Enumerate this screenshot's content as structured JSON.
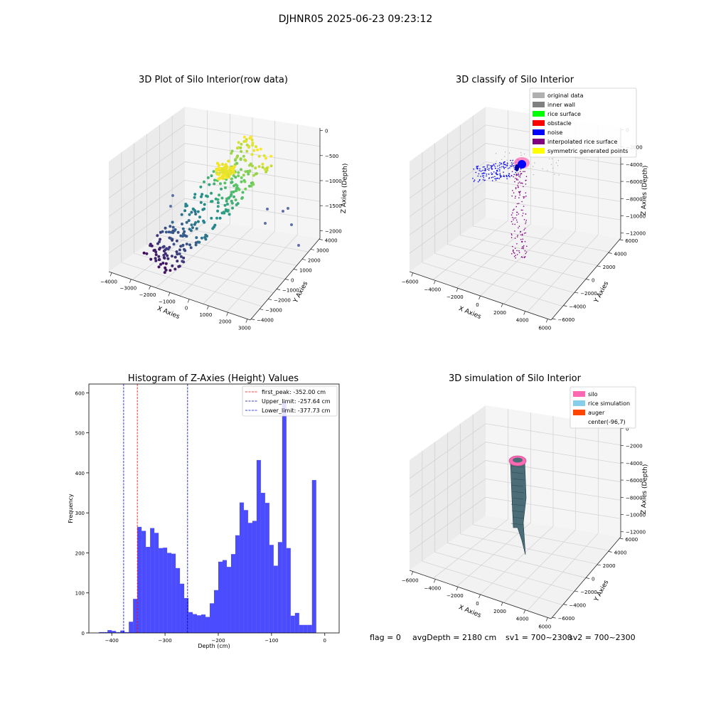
{
  "suptitle": "DJHNR05 2025-06-23 09:23:12",
  "footer": {
    "flag": "flag = 0",
    "avg_depth": "avgDepth = 2180 cm",
    "sv1": "sv1 = 700~2300",
    "sv2": "sv2 = 700~2300"
  },
  "chart_data": [
    {
      "type": "scatter",
      "title": "3D Plot of Silo Interior(row data)",
      "xlabel": "X Axies",
      "ylabel": "Y Axies",
      "zlabel": "Z Axies (Depth)",
      "x_ticks": [
        "−4000",
        "−3000",
        "−2000",
        "−1000",
        "0",
        "1000",
        "2000",
        "3000"
      ],
      "y_ticks": [
        "−4000",
        "−3000",
        "−2000",
        "−1000",
        "0",
        "1000",
        "2000",
        "3000",
        "4000"
      ],
      "z_ticks": [
        "0",
        "−500",
        "−1000",
        "−1500",
        "−2000"
      ],
      "colormap": [
        "#440154",
        "#3b528b",
        "#21918c",
        "#5ec962",
        "#fde725"
      ]
    },
    {
      "type": "scatter",
      "title": "3D classify of Silo Interior",
      "xlabel": "X Axies",
      "ylabel": "Y Axies",
      "zlabel": "Z Axies (Depth)",
      "x_ticks": [
        "−6000",
        "−4000",
        "−2000",
        "0",
        "2000",
        "4000",
        "6000"
      ],
      "y_ticks": [
        "−6000",
        "−4000",
        "−2000",
        "0",
        "2000",
        "4000",
        "6000"
      ],
      "z_ticks": [
        "0",
        "−2000",
        "−4000",
        "−6000",
        "−8000",
        "−10000",
        "−12000"
      ],
      "legend": [
        {
          "label": "original data",
          "color": "#b0b0b0"
        },
        {
          "label": "inner wall",
          "color": "#808080"
        },
        {
          "label": "rice surface",
          "color": "#00ff00"
        },
        {
          "label": "obstacle",
          "color": "#ff0000"
        },
        {
          "label": "noise",
          "color": "#0000ff"
        },
        {
          "label": "interpolated rice surface",
          "color": "#800080"
        },
        {
          "label": "symmetric generated points",
          "color": "#ffff00"
        }
      ]
    },
    {
      "type": "bar",
      "title": "Histogram of Z-Axies (Height) Values",
      "xlabel": "Depth (cm)",
      "ylabel": "Frequency",
      "xlim": [
        -443,
        27
      ],
      "ylim": [
        0,
        622
      ],
      "bin_width": 8,
      "bin_starts": [
        -424,
        -416,
        -408,
        -400,
        -392,
        -384,
        -376,
        -368,
        -360,
        -352,
        -344,
        -336,
        -328,
        -320,
        -312,
        -304,
        -296,
        -288,
        -280,
        -272,
        -264,
        -256,
        -248,
        -240,
        -232,
        -224,
        -216,
        -208,
        -200,
        -192,
        -184,
        -176,
        -168,
        -160,
        -152,
        -144,
        -136,
        -128,
        -120,
        -112,
        -104,
        -96,
        -88,
        -80,
        -72,
        -64,
        -56,
        -48,
        -40,
        -32,
        -24,
        -16,
        -8
      ],
      "values": [
        2,
        2,
        7,
        5,
        2,
        6,
        2,
        28,
        85,
        265,
        255,
        215,
        262,
        250,
        212,
        213,
        200,
        198,
        162,
        123,
        87,
        52,
        47,
        44,
        46,
        40,
        74,
        107,
        178,
        182,
        165,
        197,
        244,
        326,
        307,
        275,
        280,
        432,
        350,
        325,
        220,
        168,
        227,
        577,
        212,
        43,
        50,
        20,
        20,
        20,
        382,
        0,
        0
      ],
      "bar_color": "#0000ff",
      "x_ticks": [
        -400,
        -300,
        -200,
        -100,
        0
      ],
      "y_ticks": [
        0,
        100,
        200,
        300,
        400,
        500,
        600
      ],
      "vlines": [
        {
          "label": "first_peak: -352.00 cm",
          "x": -352.0,
          "color": "#ff0000"
        },
        {
          "label": "Upper_limit: -257.64 cm",
          "x": -257.64,
          "color": "#0000a0"
        },
        {
          "label": "Lower_limit: -377.73 cm",
          "x": -377.73,
          "color": "#0000ff"
        }
      ]
    },
    {
      "type": "surface",
      "title": "3D simulation of Silo Interior",
      "xlabel": "X Axies",
      "ylabel": "Y Axies",
      "zlabel": "Z Axies (Depth)",
      "x_ticks": [
        "−6000",
        "−4000",
        "−2000",
        "0",
        "2000",
        "4000",
        "6000"
      ],
      "y_ticks": [
        "−6000",
        "−4000",
        "−2000",
        "0",
        "2000",
        "4000",
        "6000"
      ],
      "z_ticks": [
        "0",
        "−2000",
        "−4000",
        "−6000",
        "−8000",
        "−10000",
        "−12000"
      ],
      "legend": [
        {
          "label": "silo",
          "color": "#ff69b4"
        },
        {
          "label": "rice simulation",
          "color": "#87ceeb"
        },
        {
          "label": "auger",
          "color": "#ff4500"
        },
        {
          "label": "center(-96,7)",
          "color": ""
        }
      ]
    }
  ]
}
